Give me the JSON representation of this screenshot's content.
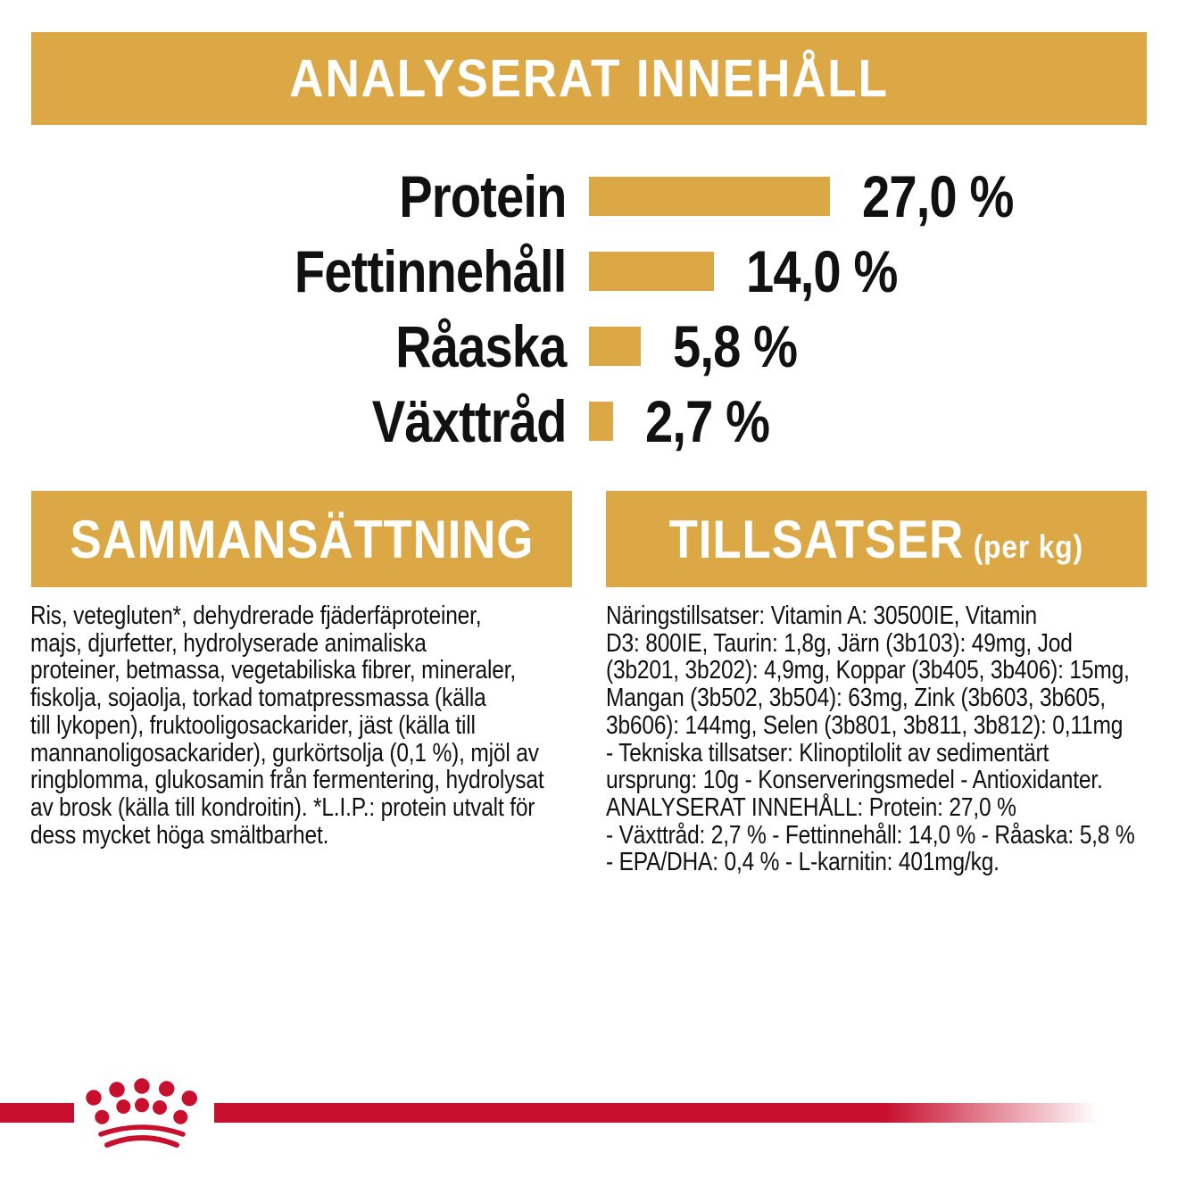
{
  "colors": {
    "gold": "#DCA845",
    "red": "#C8102E",
    "ink": "#111111",
    "banner_text": "#ffffff"
  },
  "header": {
    "title": "ANALYSERAT INNEHÅLL"
  },
  "chart_data": {
    "type": "bar",
    "orientation": "horizontal",
    "title": "ANALYSERAT INNEHÅLL",
    "categories": [
      "Protein",
      "Fettinnehåll",
      "Råaska",
      "Växttråd"
    ],
    "values": [
      27.0,
      14.0,
      5.8,
      2.7
    ],
    "value_labels": [
      "27,0 %",
      "14,0 %",
      "5,8 %",
      "2,7 %"
    ],
    "unit": "%",
    "xlim": [
      0,
      30
    ],
    "bar_color": "#DCA845",
    "grid": "off",
    "legend": "none"
  },
  "sections": {
    "composition": {
      "title": "SAMMANSÄTTNING",
      "lines": [
        "Ris, vetegluten*, dehydrerade fjäderfäproteiner,",
        "majs, djurfetter, hydrolyserade animaliska",
        "proteiner, betmassa, vegetabiliska fibrer, mineraler,",
        "fiskolja, sojaolja, torkad tomatpressmassa (källa",
        "till lykopen), fruktooligosackarider, jäst (källa till",
        "mannanoligosackarider), gurkörtsolja (0,1 %), mjöl av",
        "ringblomma, glukosamin från fermentering, hydrolysat",
        "av brosk (källa till kondroitin). *L.I.P.: protein utvalt för",
        "dess mycket höga smältbarhet."
      ]
    },
    "additives": {
      "title": "TILLSATSER",
      "title_suffix": "(per kg)",
      "lines": [
        "Näringstillsatser: Vitamin A: 30500IE, Vitamin",
        "D3: 800IE, Taurin: 1,8g, Järn (3b103): 49mg, Jod",
        "(3b201, 3b202): 4,9mg, Koppar (3b405, 3b406): 15mg,",
        "Mangan (3b502, 3b504): 63mg, Zink (3b603, 3b605,",
        "3b606): 144mg, Selen (3b801, 3b811, 3b812): 0,11mg",
        "- Tekniska tillsatser: Klinoptilolit av sedimentärt",
        "ursprung: 10g - Konserveringsmedel - Antioxidanter.",
        "ANALYSERAT INNEHÅLL: Protein: 27,0 %",
        "- Växttråd: 2,7 % - Fettinnehåll: 14,0 % - Råaska: 5,8 %",
        "- EPA/DHA: 0,4 % - L-karnitin: 401mg/kg."
      ]
    }
  },
  "footer": {
    "logo_icon": "royal-canin-crown-logo"
  }
}
